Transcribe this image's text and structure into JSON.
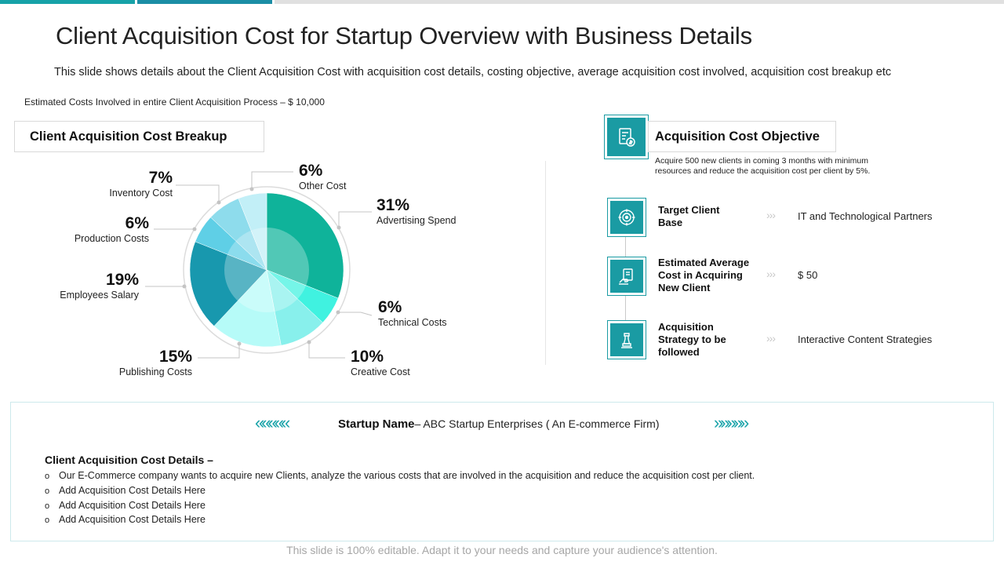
{
  "colors": {
    "teal_dark": "#17a2a8",
    "teal_bar2": "#1b8ea5",
    "grey_bar": "#e0e0e0",
    "icon_bg": "#1a9ba3"
  },
  "header": {
    "title": "Client Acquisition Cost for Startup Overview with Business Details",
    "subtitle": "This slide shows details about the Client Acquisition Cost with acquisition cost details, costing objective, average acquisition cost involved, acquisition cost breakup etc",
    "estimate": "Estimated Costs Involved in entire Client Acquisition Process – $ 10,000"
  },
  "breakup": {
    "heading": "Client Acquisition Cost Breakup"
  },
  "chart_data": {
    "type": "pie",
    "title": "Client Acquisition Cost Breakup",
    "slices": [
      {
        "label": "Advertising Spend",
        "value": 31,
        "display": "31%",
        "color": "#0fb39a"
      },
      {
        "label": "Technical Costs",
        "value": 6,
        "display": "6%",
        "color": "#40f2e0"
      },
      {
        "label": "Creative Cost",
        "value": 10,
        "display": "10%",
        "color": "#88f0ec"
      },
      {
        "label": "Publishing Costs",
        "value": 15,
        "display": "15%",
        "color": "#b6fbf8"
      },
      {
        "label": "Employees Salary",
        "value": 19,
        "display": "19%",
        "color": "#1898ae"
      },
      {
        "label": "Production Costs",
        "value": 6,
        "display": "6%",
        "color": "#5fcfe6"
      },
      {
        "label": "Inventory Cost",
        "value": 7,
        "display": "7%",
        "color": "#8edcec"
      },
      {
        "label": "Other Cost",
        "value": 6,
        "display": "6%",
        "color": "#c2eff7"
      }
    ]
  },
  "objective": {
    "heading": "Acquisition Cost Objective",
    "text": "Acquire 500 new clients in coming 3 months with minimum resources and reduce the acquisition cost per client by 5%.",
    "arrows": "›››",
    "rows": [
      {
        "icon": "target-icon",
        "label": "Target Client Base",
        "value": "IT and Technological Partners"
      },
      {
        "icon": "cost-icon",
        "label": "Estimated Average Cost in Acquiring New Client",
        "value": "$ 50"
      },
      {
        "icon": "chess-icon",
        "label": "Acquisition Strategy to be followed",
        "value": "Interactive Content Strategies"
      }
    ]
  },
  "startup": {
    "left_arrows": "«««««",
    "right_arrows": "»»»»»",
    "name_label": "Startup Name",
    "name_value": "– ABC Startup Enterprises ( An E-commerce Firm)"
  },
  "details": {
    "heading": "Client Acquisition Cost Details –",
    "bullet": "o",
    "items": [
      "Our E-Commerce company wants to acquire new Clients, analyze the various costs that are involved  in the acquisition and reduce the acquisition cost per client.",
      "Add Acquisition Cost Details Here",
      "Add Acquisition Cost Details Here",
      "Add Acquisition Cost Details Here"
    ]
  },
  "footer": {
    "text": "This slide is 100% editable. Adapt it to your needs and capture your audience's attention."
  }
}
